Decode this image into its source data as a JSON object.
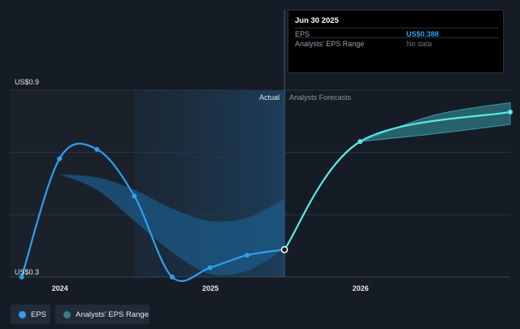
{
  "tooltip": {
    "date": "Jun 30 2025",
    "rows": [
      {
        "label": "EPS",
        "value": "US$0.388"
      },
      {
        "label": "Analysts' EPS Range",
        "value": "No data"
      }
    ]
  },
  "legend": {
    "items": [
      {
        "label": "EPS",
        "color": "#2d9ff0",
        "icon": "dot-icon"
      },
      {
        "label": "Analysts' EPS Range",
        "color": "#2f7f8a",
        "icon": "dot-icon"
      }
    ]
  },
  "chart_data": {
    "type": "line",
    "y_top_label": "US$0.9",
    "y_bottom_label": "US$0.3",
    "ylim": [
      0.3,
      0.9
    ],
    "xlim": [
      "2023-09-01",
      "2026-12-31"
    ],
    "x_ticks": [
      "2024",
      "2025",
      "2026"
    ],
    "grid": true,
    "divider_labels": {
      "actual": "Actual",
      "forecast": "Analysts Forecasts"
    },
    "colors": {
      "eps": "#2d9ff0",
      "forecast": "#5ce8e6",
      "range": "#1c5a87",
      "forecast_range": "#2f7f8a"
    },
    "series": [
      {
        "name": "EPS",
        "points": [
          [
            "2023-09-30",
            0.3
          ],
          [
            "2023-12-31",
            0.68
          ],
          [
            "2024-03-31",
            0.71
          ],
          [
            "2024-06-30",
            0.56
          ],
          [
            "2024-09-30",
            0.3
          ],
          [
            "2024-12-31",
            0.33
          ],
          [
            "2025-03-31",
            0.37
          ],
          [
            "2025-06-30",
            0.388
          ]
        ]
      },
      {
        "name": "Analysts Forecasts",
        "points": [
          [
            "2025-06-30",
            0.388
          ],
          [
            "2025-12-31",
            0.735
          ],
          [
            "2026-12-31",
            0.83
          ]
        ]
      }
    ],
    "range_band": {
      "x": [
        "2023-12-31",
        "2024-03-31",
        "2024-06-30",
        "2024-09-30",
        "2024-12-31",
        "2025-03-31",
        "2025-06-30"
      ],
      "low": [
        0.63,
        0.58,
        0.48,
        0.38,
        0.31,
        0.32,
        0.39
      ],
      "high": [
        0.63,
        0.62,
        0.58,
        0.52,
        0.48,
        0.49,
        0.55
      ]
    },
    "forecast_band": {
      "x": [
        "2025-12-31",
        "2026-06-30",
        "2026-12-31"
      ],
      "low": [
        0.735,
        0.76,
        0.79
      ],
      "high": [
        0.735,
        0.82,
        0.86
      ]
    }
  }
}
